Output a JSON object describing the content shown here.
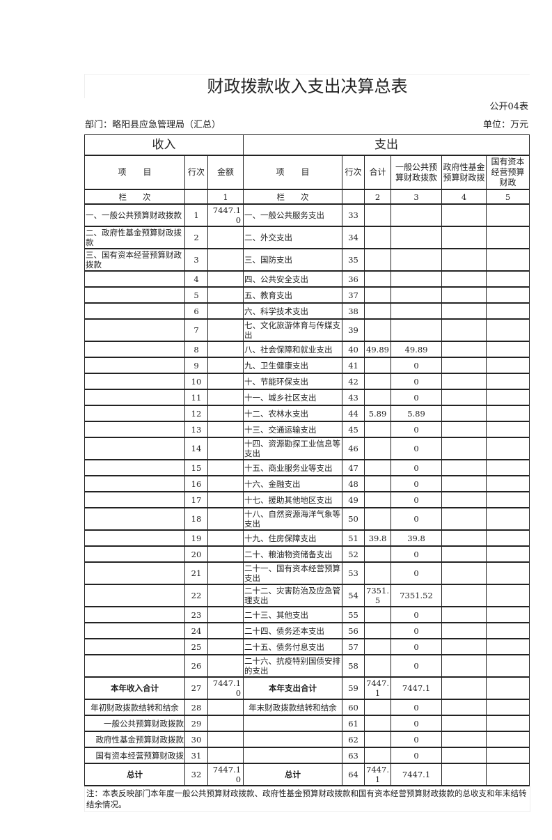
{
  "title": "财政拨款收入支出决算总表",
  "form_no": "公开04表",
  "department": "部门：略阳县应急管理局（汇总）",
  "unit": "单位：万元",
  "header": {
    "income": "收入",
    "expense": "支出",
    "item": "项　　目",
    "row_no": "行次",
    "amount": "金额",
    "total": "合计",
    "general": "一般公共预算财政拨款",
    "fund": "政府性基金预算财政拨",
    "state": "国有资本经营预算财政",
    "col_label": "栏　　次",
    "col1": "1",
    "col2": "2",
    "col3": "3",
    "col4": "4",
    "col5": "5"
  },
  "rows": [
    {
      "in_label": "一、一般公共预算财政拨款",
      "in_no": "1",
      "in_amt": "7447.10",
      "out_label": "一、一般公共服务支出",
      "out_no": "33",
      "total": "",
      "general": "",
      "fund": "",
      "state": ""
    },
    {
      "in_label": "二、政府性基金预算财政拨款",
      "in_no": "2",
      "in_amt": "",
      "out_label": "二、外交支出",
      "out_no": "34",
      "total": "",
      "general": "",
      "fund": "",
      "state": ""
    },
    {
      "in_label": "三、国有资本经营预算财政拨款",
      "in_no": "3",
      "in_amt": "",
      "out_label": "三、国防支出",
      "out_no": "35",
      "total": "",
      "general": "",
      "fund": "",
      "state": ""
    },
    {
      "in_label": "",
      "in_no": "4",
      "in_amt": "",
      "out_label": "四、公共安全支出",
      "out_no": "36",
      "total": "",
      "general": "",
      "fund": "",
      "state": ""
    },
    {
      "in_label": "",
      "in_no": "5",
      "in_amt": "",
      "out_label": "五、教育支出",
      "out_no": "37",
      "total": "",
      "general": "",
      "fund": "",
      "state": ""
    },
    {
      "in_label": "",
      "in_no": "6",
      "in_amt": "",
      "out_label": "六、科学技术支出",
      "out_no": "38",
      "total": "",
      "general": "",
      "fund": "",
      "state": ""
    },
    {
      "in_label": "",
      "in_no": "7",
      "in_amt": "",
      "out_label": "七、文化旅游体育与传媒支出",
      "out_no": "39",
      "total": "",
      "general": "",
      "fund": "",
      "state": ""
    },
    {
      "in_label": "",
      "in_no": "8",
      "in_amt": "",
      "out_label": "八、社会保障和就业支出",
      "out_no": "40",
      "total": "49.89",
      "general": "49.89",
      "fund": "",
      "state": ""
    },
    {
      "in_label": "",
      "in_no": "9",
      "in_amt": "",
      "out_label": "九、卫生健康支出",
      "out_no": "41",
      "total": "",
      "general": "0",
      "fund": "",
      "state": ""
    },
    {
      "in_label": "",
      "in_no": "10",
      "in_amt": "",
      "out_label": "十、节能环保支出",
      "out_no": "42",
      "total": "",
      "general": "0",
      "fund": "",
      "state": ""
    },
    {
      "in_label": "",
      "in_no": "11",
      "in_amt": "",
      "out_label": "十一、城乡社区支出",
      "out_no": "43",
      "total": "",
      "general": "0",
      "fund": "",
      "state": ""
    },
    {
      "in_label": "",
      "in_no": "12",
      "in_amt": "",
      "out_label": "十二、农林水支出",
      "out_no": "44",
      "total": "5.89",
      "general": "5.89",
      "fund": "",
      "state": ""
    },
    {
      "in_label": "",
      "in_no": "13",
      "in_amt": "",
      "out_label": "十三、交通运输支出",
      "out_no": "45",
      "total": "",
      "general": "0",
      "fund": "",
      "state": ""
    },
    {
      "in_label": "",
      "in_no": "14",
      "in_amt": "",
      "out_label": "十四、资源勘探工业信息等支出",
      "out_no": "46",
      "total": "",
      "general": "0",
      "fund": "",
      "state": ""
    },
    {
      "in_label": "",
      "in_no": "15",
      "in_amt": "",
      "out_label": "十五、商业服务业等支出",
      "out_no": "47",
      "total": "",
      "general": "0",
      "fund": "",
      "state": ""
    },
    {
      "in_label": "",
      "in_no": "16",
      "in_amt": "",
      "out_label": "十六、金融支出",
      "out_no": "48",
      "total": "",
      "general": "0",
      "fund": "",
      "state": ""
    },
    {
      "in_label": "",
      "in_no": "17",
      "in_amt": "",
      "out_label": "十七、援助其他地区支出",
      "out_no": "49",
      "total": "",
      "general": "0",
      "fund": "",
      "state": ""
    },
    {
      "in_label": "",
      "in_no": "18",
      "in_amt": "",
      "out_label": "十八、自然资源海洋气象等支出",
      "out_no": "50",
      "total": "",
      "general": "0",
      "fund": "",
      "state": ""
    },
    {
      "in_label": "",
      "in_no": "19",
      "in_amt": "",
      "out_label": "十九、住房保障支出",
      "out_no": "51",
      "total": "39.8",
      "general": "39.8",
      "fund": "",
      "state": ""
    },
    {
      "in_label": "",
      "in_no": "20",
      "in_amt": "",
      "out_label": "二十、粮油物资储备支出",
      "out_no": "52",
      "total": "",
      "general": "0",
      "fund": "",
      "state": ""
    },
    {
      "in_label": "",
      "in_no": "21",
      "in_amt": "",
      "out_label": "二十一、国有资本经营预算支出",
      "out_no": "53",
      "total": "",
      "general": "0",
      "fund": "",
      "state": ""
    },
    {
      "in_label": "",
      "in_no": "22",
      "in_amt": "",
      "out_label": "二十二、灾害防治及应急管理支出",
      "out_no": "54",
      "total": "7351.5",
      "general": "7351.52",
      "fund": "",
      "state": ""
    },
    {
      "in_label": "",
      "in_no": "23",
      "in_amt": "",
      "out_label": "二十三、其他支出",
      "out_no": "55",
      "total": "",
      "general": "0",
      "fund": "",
      "state": ""
    },
    {
      "in_label": "",
      "in_no": "24",
      "in_amt": "",
      "out_label": "二十四、债务还本支出",
      "out_no": "56",
      "total": "",
      "general": "0",
      "fund": "",
      "state": ""
    },
    {
      "in_label": "",
      "in_no": "25",
      "in_amt": "",
      "out_label": "二十五、债务付息支出",
      "out_no": "57",
      "total": "",
      "general": "0",
      "fund": "",
      "state": ""
    },
    {
      "in_label": "",
      "in_no": "26",
      "in_amt": "",
      "out_label": "二十六、抗疫特别国债安排的支出",
      "out_no": "58",
      "total": "",
      "general": "0",
      "fund": "",
      "state": ""
    },
    {
      "in_label": "本年收入合计",
      "in_no": "27",
      "in_amt": "7447.10",
      "out_label": "本年支出合计",
      "out_no": "59",
      "total": "7447.1",
      "general": "7447.1",
      "fund": "",
      "state": ""
    },
    {
      "in_label": "年初财政拨款结转和结余",
      "in_no": "28",
      "in_amt": "",
      "out_label": "年末财政拨款结转和结余",
      "out_no": "60",
      "total": "",
      "general": "0",
      "fund": "",
      "state": ""
    },
    {
      "in_label": "一般公共预算财政拨款",
      "in_no": "29",
      "in_amt": "",
      "out_label": "",
      "out_no": "61",
      "total": "",
      "general": "0",
      "fund": "",
      "state": ""
    },
    {
      "in_label": "政府性基金预算财政拨款",
      "in_no": "30",
      "in_amt": "",
      "out_label": "",
      "out_no": "62",
      "total": "",
      "general": "0",
      "fund": "",
      "state": ""
    },
    {
      "in_label": "国有资本经营预算财政拨",
      "in_no": "31",
      "in_amt": "",
      "out_label": "",
      "out_no": "63",
      "total": "",
      "general": "0",
      "fund": "",
      "state": ""
    },
    {
      "in_label": "总计",
      "in_no": "32",
      "in_amt": "7447.10",
      "out_label": "总计",
      "out_no": "64",
      "total": "7447.1",
      "general": "7447.1",
      "fund": "",
      "state": ""
    }
  ],
  "note": "注：本表反映部门本年度一般公共预算财政拨款、政府性基金预算财政拨款和国有资本经营预算财政拨款的总收支和年末结转结余情况。"
}
